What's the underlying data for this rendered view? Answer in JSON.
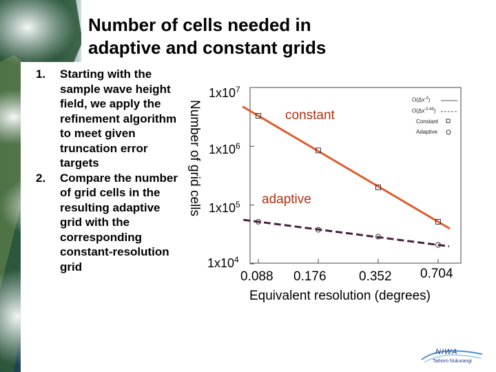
{
  "slide": {
    "title_line1": "Number of cells needed in",
    "title_line2": "adaptive and constant grids",
    "bullets": [
      {
        "num": "1.",
        "text": "Starting with the sample wave height field, we apply the refinement algorithm to meet given truncation error targets"
      },
      {
        "num": "2.",
        "text": "Compare the number of grid cells in the resulting adaptive grid with the corresponding constant-resolution grid"
      }
    ],
    "logo": {
      "name": "NIWA",
      "tagline": "Taihoro Nukurangi"
    }
  },
  "chart_data": {
    "type": "line",
    "xlabel": "Equivalent resolution (degrees)",
    "ylabel": "Number of grid cells",
    "xscale": "log",
    "yscale": "log",
    "xticks": [
      {
        "value": 0.088,
        "label": "0.088"
      },
      {
        "value": 0.176,
        "label": "0.176"
      },
      {
        "value": 0.352,
        "label": "0.352"
      },
      {
        "value": 0.704,
        "label": "0.704"
      }
    ],
    "yticks": [
      {
        "value": 10000,
        "base": "1x10",
        "exp": "4"
      },
      {
        "value": 100000,
        "base": "1x10",
        "exp": "5"
      },
      {
        "value": 1000000,
        "base": "1x10",
        "exp": "6"
      },
      {
        "value": 10000000,
        "base": "1x10",
        "exp": "7"
      }
    ],
    "series": [
      {
        "name": "Constant",
        "marker": "square",
        "x": [
          0.088,
          0.176,
          0.352,
          0.704
        ],
        "y": [
          3300000,
          850000,
          200000,
          52000
        ]
      },
      {
        "name": "Adaptive",
        "marker": "circle",
        "x": [
          0.088,
          0.176,
          0.352,
          0.704
        ],
        "y": [
          52000,
          38000,
          29000,
          21000
        ]
      }
    ],
    "fits": [
      {
        "name": "O(Δx",
        "exp": "-2",
        "close": ")",
        "style": "solid",
        "color": "#e05a2b"
      },
      {
        "name": "O(Δx",
        "exp": "-0.45",
        "close": ")",
        "style": "dashed",
        "color": "#4b1f3f"
      }
    ],
    "legend_position": "top-right",
    "annotations": [
      {
        "text": "constant",
        "color": "#b03010"
      },
      {
        "text": "adaptive",
        "color": "#b03010"
      }
    ]
  }
}
